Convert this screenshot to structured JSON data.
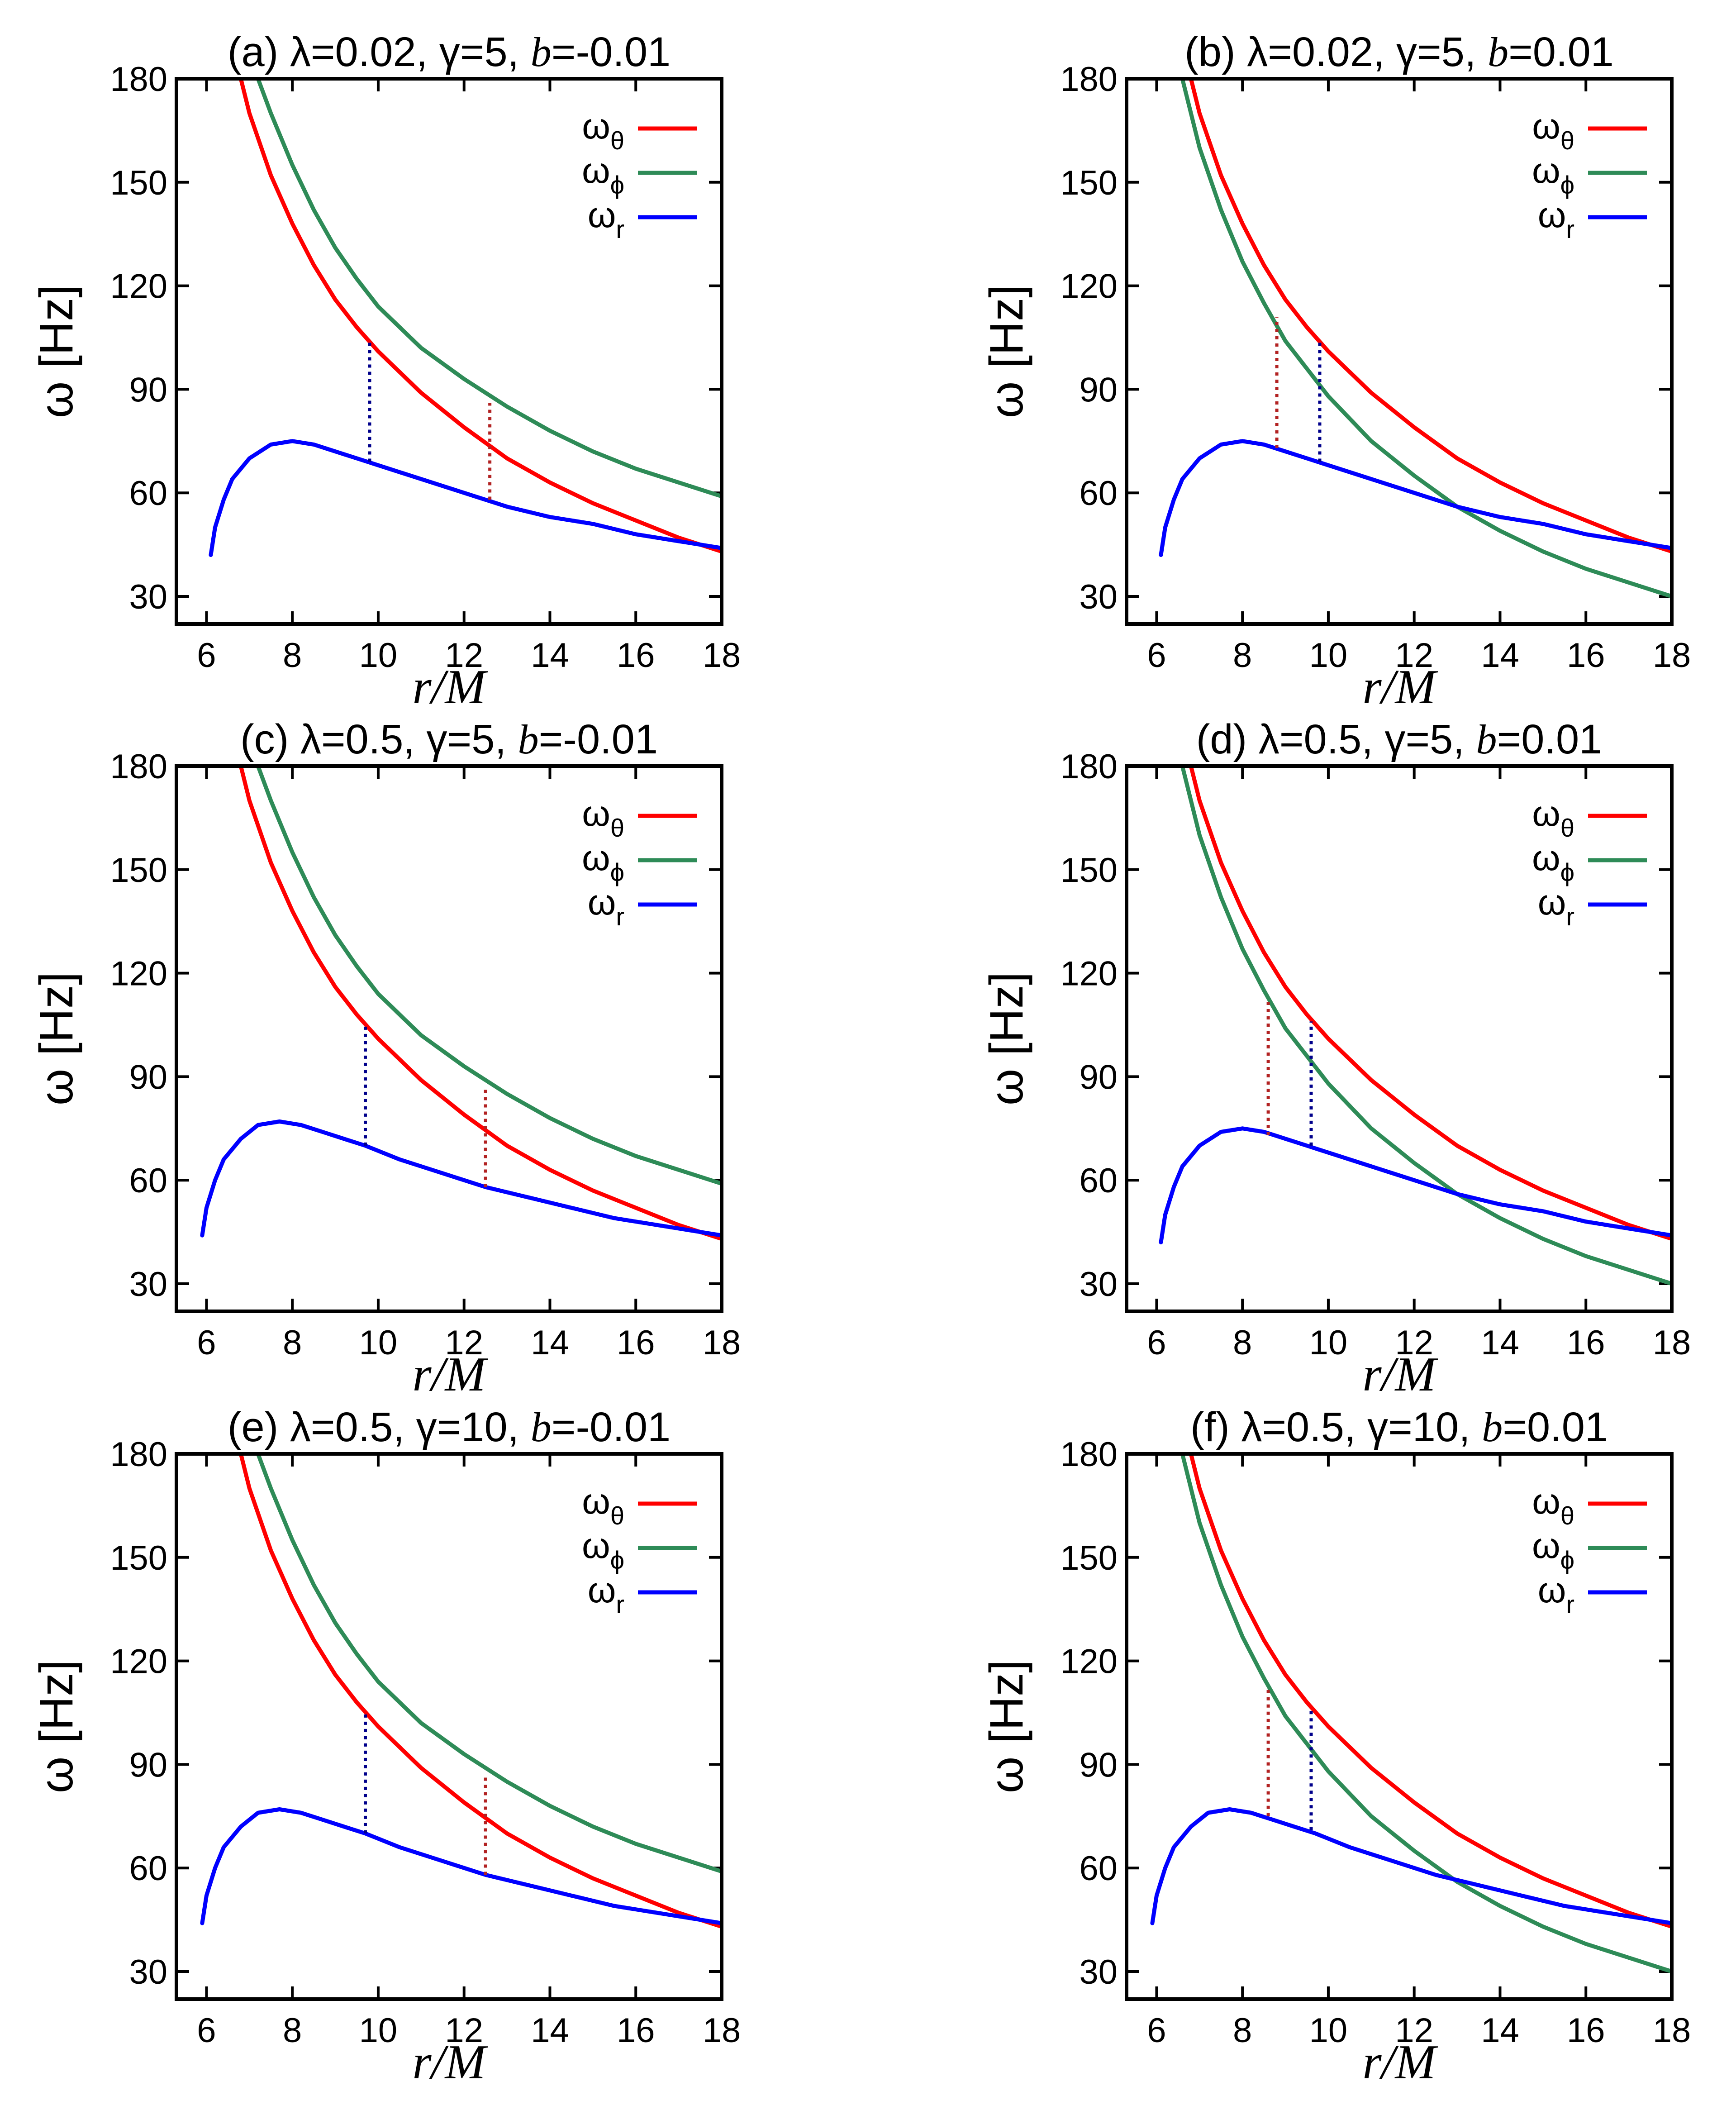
{
  "figure": {
    "description_free": true
  },
  "panels": [
    {
      "title": "(a) λ=0.02, γ=5, b=-0.01",
      "title_prefix": "(a) λ=0.02, γ=5, ",
      "title_b": "b",
      "title_bval": "=-0.01"
    },
    {
      "title": "(b) λ=0.02, γ=5, b=0.01",
      "title_prefix": "(b) λ=0.02, γ=5, ",
      "title_b": "b",
      "title_bval": "=0.01"
    },
    {
      "title": "(c) λ=0.5, γ=5, b=-0.01",
      "title_prefix": "(c) λ=0.5, γ=5, ",
      "title_b": "b",
      "title_bval": "=-0.01"
    },
    {
      "title": "(d) λ=0.5, γ=5, b=0.01",
      "title_prefix": "(d) λ=0.5, γ=5, ",
      "title_b": "b",
      "title_bval": "=0.01"
    },
    {
      "title": "(e) λ=0.5, γ=10, b=-0.01",
      "title_prefix": "(e) λ=0.5, γ=10, ",
      "title_b": "b",
      "title_bval": "=-0.01"
    },
    {
      "title": "(f) λ=0.5, γ=10, b=0.01",
      "title_prefix": "(f) λ=0.5, γ=10, ",
      "title_b": "b",
      "title_bval": "=0.01"
    }
  ],
  "colors": {
    "theta": "#ff0000",
    "phi": "#2e8b57",
    "r": "#0000ff",
    "dot_red": "#b22222",
    "dot_blue": "#00008b"
  },
  "chart_data": [
    {
      "type": "line",
      "title": "(a) λ=0.02, γ=5, b=-0.01",
      "xlabel": "r/M",
      "ylabel": "ω [Hz]",
      "xlim": [
        5.3,
        18
      ],
      "ylim": [
        22,
        180
      ],
      "xticks": [
        6,
        8,
        10,
        12,
        14,
        16,
        18
      ],
      "yticks": [
        30,
        60,
        90,
        120,
        150,
        180
      ],
      "legend": [
        "ωθ",
        "ωϕ",
        "ωr"
      ],
      "legend_position": "top-right",
      "series": [
        {
          "name": "ωθ",
          "x": [
            6.8,
            7,
            7.5,
            8,
            8.5,
            9,
            9.5,
            10,
            11,
            12,
            13,
            14,
            15,
            16,
            17,
            18
          ],
          "values": [
            180,
            170,
            152,
            138,
            126,
            116,
            108,
            101,
            89,
            79,
            70,
            63,
            57,
            52,
            47,
            43
          ]
        },
        {
          "name": "ωϕ",
          "x": [
            7.2,
            7.5,
            8,
            8.5,
            9,
            9.5,
            10,
            11,
            12,
            13,
            14,
            15,
            16,
            17,
            18
          ],
          "values": [
            180,
            170,
            155,
            142,
            131,
            122,
            114,
            102,
            93,
            85,
            78,
            72,
            67,
            63,
            59
          ]
        },
        {
          "name": "ωr",
          "x": [
            6.1,
            6.2,
            6.4,
            6.6,
            7,
            7.5,
            8,
            8.5,
            9,
            9.5,
            10,
            11,
            12,
            13,
            14,
            15,
            16,
            17,
            18
          ],
          "values": [
            42,
            50,
            58,
            64,
            70,
            74,
            75,
            74,
            72,
            70,
            68,
            64,
            60,
            56,
            53,
            51,
            48,
            46,
            44
          ]
        }
      ],
      "markers": [
        {
          "x": 9.8,
          "from": 69,
          "to": 104,
          "color": "blue"
        },
        {
          "x": 12.6,
          "from": 58,
          "to": 86,
          "color": "red"
        }
      ]
    },
    {
      "type": "line",
      "title": "(b) λ=0.02, γ=5, b=0.01",
      "xlabel": "r/M",
      "ylabel": "ω [Hz]",
      "xlim": [
        5.3,
        18
      ],
      "ylim": [
        22,
        180
      ],
      "xticks": [
        6,
        8,
        10,
        12,
        14,
        16,
        18
      ],
      "yticks": [
        30,
        60,
        90,
        120,
        150,
        180
      ],
      "legend": [
        "ωθ",
        "ωϕ",
        "ωr"
      ],
      "legend_position": "top-right",
      "series": [
        {
          "name": "ωθ",
          "x": [
            6.8,
            7,
            7.5,
            8,
            8.5,
            9,
            9.5,
            10,
            11,
            12,
            13,
            14,
            15,
            16,
            17,
            18
          ],
          "values": [
            180,
            170,
            152,
            138,
            126,
            116,
            108,
            101,
            89,
            79,
            70,
            63,
            57,
            52,
            47,
            43
          ]
        },
        {
          "name": "ωϕ",
          "x": [
            6.6,
            7,
            7.5,
            8,
            8.5,
            9,
            9.5,
            10,
            11,
            12,
            13,
            14,
            15,
            16,
            17,
            18
          ],
          "values": [
            180,
            160,
            142,
            127,
            115,
            104,
            96,
            88,
            75,
            65,
            56,
            49,
            43,
            38,
            34,
            30
          ]
        },
        {
          "name": "ωr",
          "x": [
            6.1,
            6.2,
            6.4,
            6.6,
            7,
            7.5,
            8,
            8.5,
            9,
            9.5,
            10,
            11,
            12,
            13,
            14,
            15,
            16,
            17,
            18
          ],
          "values": [
            42,
            50,
            58,
            64,
            70,
            74,
            75,
            74,
            72,
            70,
            68,
            64,
            60,
            56,
            53,
            51,
            48,
            46,
            44
          ]
        }
      ],
      "markers": [
        {
          "x": 8.8,
          "from": 73,
          "to": 111,
          "color": "red"
        },
        {
          "x": 9.8,
          "from": 69,
          "to": 104,
          "color": "blue"
        }
      ]
    },
    {
      "type": "line",
      "title": "(c) λ=0.5, γ=5, b=-0.01",
      "xlabel": "r/M",
      "ylabel": "ω [Hz]",
      "xlim": [
        5.3,
        18
      ],
      "ylim": [
        22,
        180
      ],
      "xticks": [
        6,
        8,
        10,
        12,
        14,
        16,
        18
      ],
      "yticks": [
        30,
        60,
        90,
        120,
        150,
        180
      ],
      "legend": [
        "ωθ",
        "ωϕ",
        "ωr"
      ],
      "legend_position": "top-right",
      "series": [
        {
          "name": "ωθ",
          "x": [
            6.8,
            7,
            7.5,
            8,
            8.5,
            9,
            9.5,
            10,
            11,
            12,
            13,
            14,
            15,
            16,
            17,
            18
          ],
          "values": [
            180,
            170,
            152,
            138,
            126,
            116,
            108,
            101,
            89,
            79,
            70,
            63,
            57,
            52,
            47,
            43
          ]
        },
        {
          "name": "ωϕ",
          "x": [
            7.2,
            7.5,
            8,
            8.5,
            9,
            9.5,
            10,
            11,
            12,
            13,
            14,
            15,
            16,
            17,
            18
          ],
          "values": [
            180,
            170,
            155,
            142,
            131,
            122,
            114,
            102,
            93,
            85,
            78,
            72,
            67,
            63,
            59
          ]
        },
        {
          "name": "ωr",
          "x": [
            5.9,
            6.0,
            6.2,
            6.4,
            6.8,
            7.2,
            7.7,
            8.2,
            8.7,
            9.2,
            9.7,
            10.5,
            11.5,
            12.5,
            13.5,
            14.5,
            15.5,
            16.5,
            18
          ],
          "values": [
            44,
            52,
            60,
            66,
            72,
            76,
            77,
            76,
            74,
            72,
            70,
            66,
            62,
            58,
            55,
            52,
            49,
            47,
            44
          ]
        }
      ],
      "markers": [
        {
          "x": 9.7,
          "from": 70,
          "to": 105,
          "color": "blue"
        },
        {
          "x": 12.5,
          "from": 58,
          "to": 87,
          "color": "red"
        }
      ]
    },
    {
      "type": "line",
      "title": "(d) λ=0.5, γ=5, b=0.01",
      "xlabel": "r/M",
      "ylabel": "ω [Hz]",
      "xlim": [
        5.3,
        18
      ],
      "ylim": [
        22,
        180
      ],
      "xticks": [
        6,
        8,
        10,
        12,
        14,
        16,
        18
      ],
      "yticks": [
        30,
        60,
        90,
        120,
        150,
        180
      ],
      "legend": [
        "ωθ",
        "ωϕ",
        "ωr"
      ],
      "legend_position": "top-right",
      "series": [
        {
          "name": "ωθ",
          "x": [
            6.8,
            7,
            7.5,
            8,
            8.5,
            9,
            9.5,
            10,
            11,
            12,
            13,
            14,
            15,
            16,
            17,
            18
          ],
          "values": [
            180,
            170,
            152,
            138,
            126,
            116,
            108,
            101,
            89,
            79,
            70,
            63,
            57,
            52,
            47,
            43
          ]
        },
        {
          "name": "ωϕ",
          "x": [
            6.6,
            7,
            7.5,
            8,
            8.5,
            9,
            9.5,
            10,
            11,
            12,
            13,
            14,
            15,
            16,
            17,
            18
          ],
          "values": [
            180,
            160,
            142,
            127,
            115,
            104,
            96,
            88,
            75,
            65,
            56,
            49,
            43,
            38,
            34,
            30
          ]
        },
        {
          "name": "ωr",
          "x": [
            6.1,
            6.2,
            6.4,
            6.6,
            7,
            7.5,
            8,
            8.5,
            9,
            9.5,
            10,
            11,
            12,
            13,
            14,
            15,
            16,
            17,
            18
          ],
          "values": [
            42,
            50,
            58,
            64,
            70,
            74,
            75,
            74,
            72,
            70,
            68,
            64,
            60,
            56,
            53,
            51,
            48,
            46,
            44
          ]
        }
      ],
      "markers": [
        {
          "x": 8.6,
          "from": 73,
          "to": 112,
          "color": "red"
        },
        {
          "x": 9.6,
          "from": 70,
          "to": 106,
          "color": "blue"
        }
      ]
    },
    {
      "type": "line",
      "title": "(e) λ=0.5, γ=10, b=-0.01",
      "xlabel": "r/M",
      "ylabel": "ω [Hz]",
      "xlim": [
        5.3,
        18
      ],
      "ylim": [
        22,
        180
      ],
      "xticks": [
        6,
        8,
        10,
        12,
        14,
        16,
        18
      ],
      "yticks": [
        30,
        60,
        90,
        120,
        150,
        180
      ],
      "legend": [
        "ωθ",
        "ωϕ",
        "ωr"
      ],
      "legend_position": "top-right",
      "series": [
        {
          "name": "ωθ",
          "x": [
            6.8,
            7,
            7.5,
            8,
            8.5,
            9,
            9.5,
            10,
            11,
            12,
            13,
            14,
            15,
            16,
            17,
            18
          ],
          "values": [
            180,
            170,
            152,
            138,
            126,
            116,
            108,
            101,
            89,
            79,
            70,
            63,
            57,
            52,
            47,
            43
          ]
        },
        {
          "name": "ωϕ",
          "x": [
            7.2,
            7.5,
            8,
            8.5,
            9,
            9.5,
            10,
            11,
            12,
            13,
            14,
            15,
            16,
            17,
            18
          ],
          "values": [
            180,
            170,
            155,
            142,
            131,
            122,
            114,
            102,
            93,
            85,
            78,
            72,
            67,
            63,
            59
          ]
        },
        {
          "name": "ωr",
          "x": [
            5.9,
            6.0,
            6.2,
            6.4,
            6.8,
            7.2,
            7.7,
            8.2,
            8.7,
            9.2,
            9.7,
            10.5,
            11.5,
            12.5,
            13.5,
            14.5,
            15.5,
            16.5,
            18
          ],
          "values": [
            44,
            52,
            60,
            66,
            72,
            76,
            77,
            76,
            74,
            72,
            70,
            66,
            62,
            58,
            55,
            52,
            49,
            47,
            44
          ]
        }
      ],
      "markers": [
        {
          "x": 9.7,
          "from": 70,
          "to": 105,
          "color": "blue"
        },
        {
          "x": 12.5,
          "from": 58,
          "to": 87,
          "color": "red"
        }
      ]
    },
    {
      "type": "line",
      "title": "(f) λ=0.5, γ=10, b=0.01",
      "xlabel": "r/M",
      "ylabel": "ω [Hz]",
      "xlim": [
        5.3,
        18
      ],
      "ylim": [
        22,
        180
      ],
      "xticks": [
        6,
        8,
        10,
        12,
        14,
        16,
        18
      ],
      "yticks": [
        30,
        60,
        90,
        120,
        150,
        180
      ],
      "legend": [
        "ωθ",
        "ωϕ",
        "ωr"
      ],
      "legend_position": "top-right",
      "series": [
        {
          "name": "ωθ",
          "x": [
            6.8,
            7,
            7.5,
            8,
            8.5,
            9,
            9.5,
            10,
            11,
            12,
            13,
            14,
            15,
            16,
            17,
            18
          ],
          "values": [
            180,
            170,
            152,
            138,
            126,
            116,
            108,
            101,
            89,
            79,
            70,
            63,
            57,
            52,
            47,
            43
          ]
        },
        {
          "name": "ωϕ",
          "x": [
            6.6,
            7,
            7.5,
            8,
            8.5,
            9,
            9.5,
            10,
            11,
            12,
            13,
            14,
            15,
            16,
            17,
            18
          ],
          "values": [
            180,
            160,
            142,
            127,
            115,
            104,
            96,
            88,
            75,
            65,
            56,
            49,
            43,
            38,
            34,
            30
          ]
        },
        {
          "name": "ωr",
          "x": [
            5.9,
            6.0,
            6.2,
            6.4,
            6.8,
            7.2,
            7.7,
            8.2,
            8.7,
            9.2,
            9.7,
            10.5,
            11.5,
            12.5,
            13.5,
            14.5,
            15.5,
            16.5,
            18
          ],
          "values": [
            44,
            52,
            60,
            66,
            72,
            76,
            77,
            76,
            74,
            72,
            70,
            66,
            62,
            58,
            55,
            52,
            49,
            47,
            44
          ]
        }
      ],
      "markers": [
        {
          "x": 8.6,
          "from": 75,
          "to": 112,
          "color": "red"
        },
        {
          "x": 9.6,
          "from": 71,
          "to": 106,
          "color": "blue"
        }
      ]
    }
  ]
}
